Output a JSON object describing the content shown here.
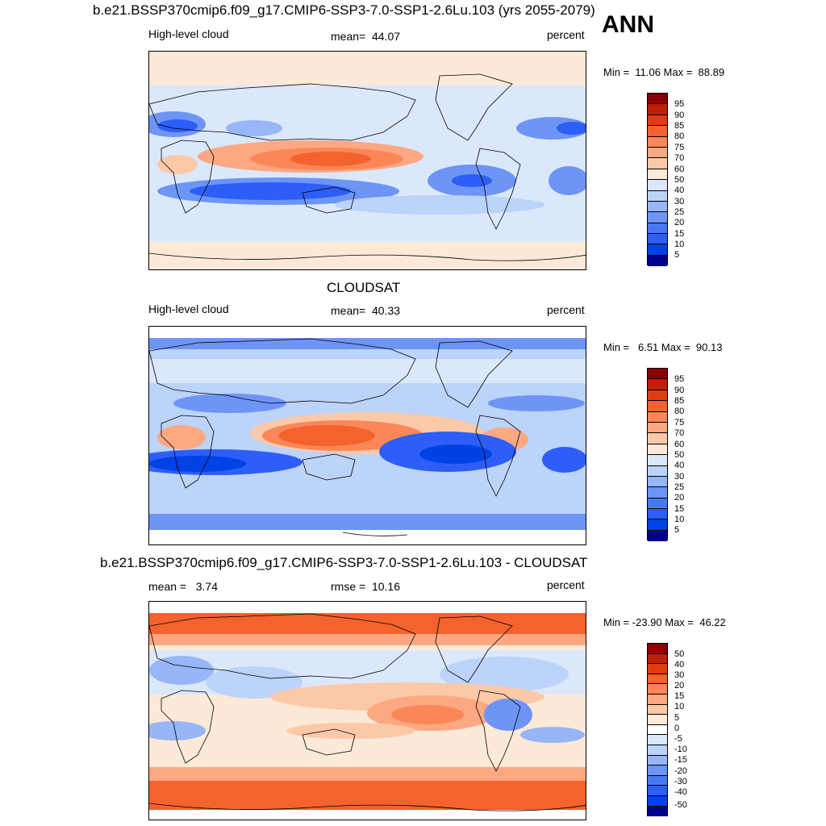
{
  "season": "ANN",
  "colors": {
    "abs": [
      "#00008b",
      "#0021c9",
      "#0042e5",
      "#2d5ef7",
      "#4a78f5",
      "#6d95f6",
      "#96b6f8",
      "#bcd3fa",
      "#dbe8fc",
      "#fde9d8",
      "#fcc9a8",
      "#fca882",
      "#fb8758",
      "#f4622e",
      "#e13c10",
      "#bf1f04",
      "#8b0000"
    ],
    "diff": [
      "#00008b",
      "#0021c9",
      "#0042e5",
      "#2d5ef7",
      "#4a78f5",
      "#6d95f6",
      "#96b6f8",
      "#bcd3fa",
      "#dbe8fc",
      "#ffffff",
      "#fde9d8",
      "#fcc9a8",
      "#fca882",
      "#fb8758",
      "#f4622e",
      "#e13c10",
      "#bf1f04",
      "#8b0000"
    ]
  },
  "panels": [
    {
      "title": "b.e21.BSSP370cmip6.f09_g17.CMIP6-SSP3-7.0-SSP1-2.6Lu.103 (yrs 2055-2079)",
      "left": "High-level cloud",
      "center": "mean=  44.07",
      "right": "percent",
      "minmax": "Min =  11.06 Max =  88.89",
      "levels": [
        "95",
        "90",
        "85",
        "80",
        "75",
        "70",
        "60",
        "50",
        "40",
        "30",
        "25",
        "20",
        "15",
        "10",
        "5"
      ]
    },
    {
      "title": "CLOUDSAT",
      "left": "High-level cloud",
      "center": "mean=  40.33",
      "right": "percent",
      "minmax": "Min =   6.51 Max =  90.13",
      "levels": [
        "95",
        "90",
        "85",
        "80",
        "75",
        "70",
        "60",
        "50",
        "40",
        "30",
        "25",
        "20",
        "15",
        "10",
        "5"
      ]
    },
    {
      "title": "b.e21.BSSP370cmip6.f09_g17.CMIP6-SSP3-7.0-SSP1-2.6Lu.103 - CLOUDSAT",
      "left": "mean =   3.74",
      "center": "rmse =  10.16",
      "right": "percent",
      "minmax": "Min = -23.90 Max =  46.22",
      "levels": [
        "50",
        "40",
        "30",
        "20",
        "15",
        "10",
        "5",
        "0",
        "-5",
        "-10",
        "-15",
        "-20",
        "-30",
        "-40",
        "-50"
      ]
    }
  ]
}
